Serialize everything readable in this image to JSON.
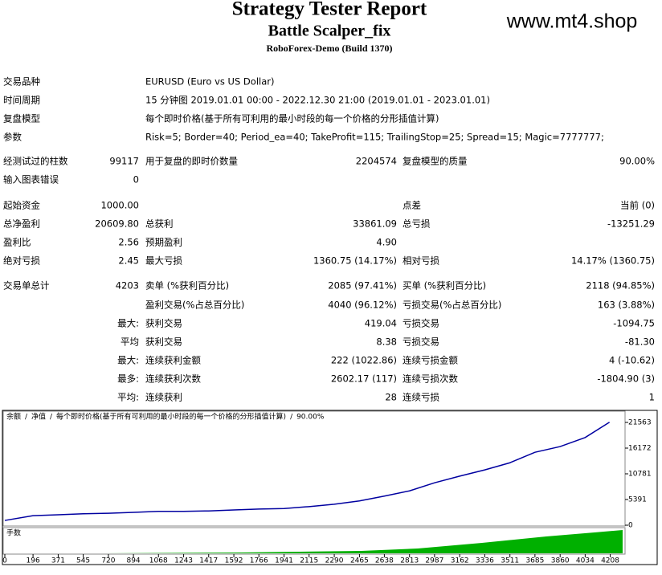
{
  "header": {
    "title": "Strategy Tester Report",
    "subtitle": "Battle Scalper_fix",
    "server": "RoboForex-Demo (Build 1370)",
    "watermark": "www.mt4.shop"
  },
  "info": [
    {
      "label": "交易品种",
      "value": "EURUSD (Euro vs US Dollar)"
    },
    {
      "label": "时间周期",
      "value": "15 分钟图 2019.01.01 00:00 - 2022.12.30 21:00 (2019.01.01 - 2023.01.01)"
    },
    {
      "label": "复盘模型",
      "value": "每个即时价格(基于所有可利用的最小时段的每一个价格的分形插值计算)"
    },
    {
      "label": "参数",
      "value": "Risk=5; Border=40; Period_ea=40; TakeProfit=115; TrailingStop=25; Spread=15; Magic=7777777;"
    }
  ],
  "stats": [
    [
      "经测试过的柱数",
      "99117",
      "用于复盘的即时价数量",
      "2204574",
      "复盘模型的质量",
      "90.00%"
    ],
    [
      "输入图表错误",
      "0",
      null,
      null,
      null,
      null
    ],
    [
      "起始资金",
      "1000.00",
      null,
      null,
      "点差",
      "当前 (0)"
    ],
    [
      "总净盈利",
      "20609.80",
      "总获利",
      "33861.09",
      "总亏损",
      "-13251.29"
    ],
    [
      "盈利比",
      "2.56",
      "预期盈利",
      "4.90",
      null,
      null
    ],
    [
      "绝对亏损",
      "2.45",
      "最大亏损",
      "1360.75 (14.17%)",
      "相对亏损",
      "14.17% (1360.75)"
    ],
    [
      "交易单总计",
      "4203",
      "卖单 (%获利百分比)",
      "2085 (97.41%)",
      "买单 (%获利百分比)",
      "2118 (94.85%)"
    ],
    [
      null,
      null,
      "盈利交易(%占总百分比)",
      "4040 (96.12%)",
      "亏损交易(%占总百分比)",
      "163 (3.88%)"
    ],
    [
      null,
      "最大:",
      "获利交易",
      "419.04",
      "亏损交易",
      "-1094.75"
    ],
    [
      null,
      "平均",
      "获利交易",
      "8.38",
      "亏损交易",
      "-81.30"
    ],
    [
      null,
      "最大:",
      "连续获利金额",
      "222 (1022.86)",
      "连续亏损金额",
      "4 (-10.62)"
    ],
    [
      null,
      "最多:",
      "连续获利次数",
      "2602.17 (117)",
      "连续亏损次数",
      "-1804.90 (3)"
    ],
    [
      null,
      "平均:",
      "连续获利",
      "28",
      "连续亏损",
      "1"
    ]
  ],
  "chart": {
    "type": "line",
    "legend": [
      {
        "text": "余额",
        "color": "#0000c0"
      },
      {
        "text": "净值",
        "color": "#00a000"
      },
      {
        "text": "每个即时价格(基于所有可利用的最小时段的每一个价格的分形插值计算)",
        "color": "#000000"
      },
      {
        "text": "90.00%",
        "color": "#000000"
      }
    ],
    "lower_label": "手数",
    "x": [
      0,
      196,
      371,
      545,
      720,
      894,
      1068,
      1243,
      1417,
      1592,
      1766,
      1941,
      2115,
      2290,
      2465,
      2638,
      2813,
      2987,
      3162,
      3336,
      3511,
      3685,
      3860,
      4034,
      4203
    ],
    "series": [
      {
        "name": "余额",
        "color": "#0000a0",
        "values": [
          1000,
          2000,
          2200,
          2400,
          2500,
          2700,
          2900,
          2900,
          3000,
          3200,
          3400,
          3500,
          3900,
          4400,
          5100,
          6100,
          7200,
          8900,
          10300,
          11600,
          13100,
          15300,
          16500,
          18400,
          21610
        ]
      }
    ],
    "xlim": [
      0,
      4300
    ],
    "ylim": [
      -168,
      23921
    ],
    "xticks": [
      0,
      196,
      371,
      545,
      720,
      894,
      1068,
      1243,
      1417,
      1592,
      1766,
      1941,
      2115,
      2290,
      2465,
      2638,
      2813,
      2987,
      3162,
      3336,
      3511,
      3685,
      3860,
      4034,
      4208
    ],
    "yticks": [
      0,
      5391,
      10781,
      16172,
      21563
    ]
  }
}
